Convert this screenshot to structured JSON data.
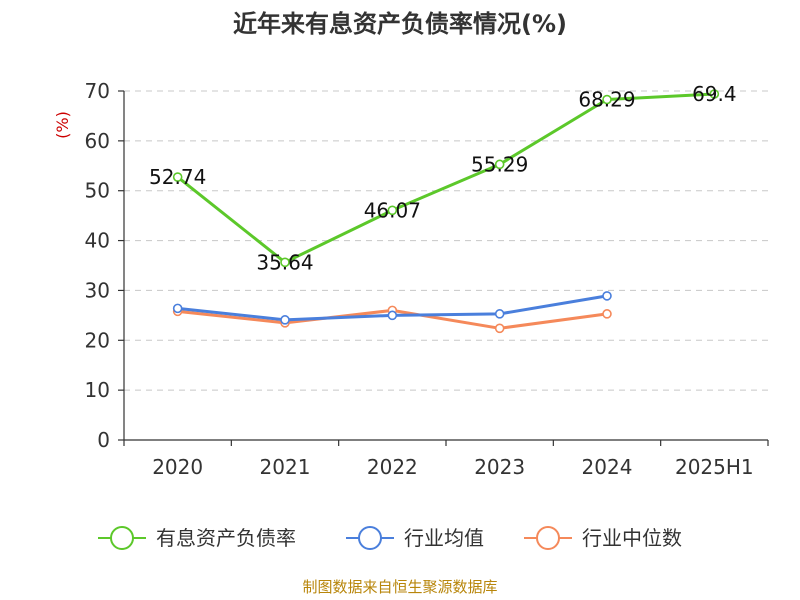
{
  "title": "近年来有息资产负债率情况(%)",
  "footer": "制图数据来自恒生聚源数据库",
  "chart_data": {
    "type": "line",
    "title": "近年来有息资产负债率情况(%)",
    "ylabel": "(%)",
    "xlabel": "",
    "categories": [
      "2020",
      "2021",
      "2022",
      "2023",
      "2024",
      "2025H1"
    ],
    "ylim": [
      0,
      70
    ],
    "yticks": [
      0,
      10,
      20,
      30,
      40,
      50,
      60,
      70
    ],
    "grid": true,
    "legend_position": "bottom",
    "series": [
      {
        "name": "有息资产负债率",
        "color": "#5cc82a",
        "values": [
          52.74,
          35.64,
          46.07,
          55.29,
          68.29,
          69.4
        ],
        "labels": [
          "52.74",
          "35.64",
          "46.07",
          "55.29",
          "68.29",
          "69.4"
        ]
      },
      {
        "name": "行业均值",
        "color": "#4a7fdc",
        "values": [
          26.4,
          24.1,
          25.0,
          25.3,
          28.9,
          null
        ]
      },
      {
        "name": "行业中位数",
        "color": "#f5895a",
        "values": [
          25.8,
          23.5,
          26.0,
          22.4,
          25.3,
          null
        ]
      }
    ]
  }
}
